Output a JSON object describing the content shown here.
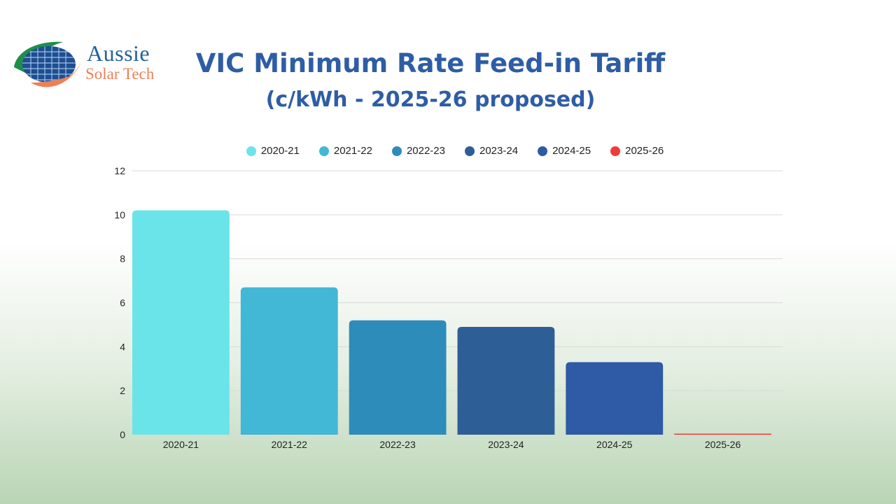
{
  "logo": {
    "line1": "Aussie",
    "line2": "Solar Tech",
    "colors": {
      "green": "#1e8f4a",
      "orange": "#ef7f55",
      "blue": "#23619c"
    }
  },
  "title": "VIC Minimum Rate Feed-in Tariff",
  "subtitle": "(c/kWh - 2025-26 proposed)",
  "chart_data": {
    "type": "bar",
    "title": "VIC Minimum Rate Feed-in Tariff",
    "subtitle": "(c/kWh - 2025-26 proposed)",
    "categories": [
      "2020-21",
      "2021-22",
      "2022-23",
      "2023-24",
      "2024-25",
      "2025-26"
    ],
    "values": [
      10.2,
      6.7,
      5.2,
      4.9,
      3.3,
      0.04
    ],
    "colors": [
      "#6ae4e8",
      "#42b7d6",
      "#2e8cba",
      "#2e5e96",
      "#2e5aa6",
      "#f23a3a"
    ],
    "legend": [
      "2020-21",
      "2021-22",
      "2022-23",
      "2023-24",
      "2024-25",
      "2025-26"
    ],
    "legend_position": "top-center",
    "ylim": [
      0,
      12
    ],
    "yticks": [
      0,
      2,
      4,
      6,
      8,
      10,
      12
    ],
    "grid": true,
    "xlabel": "",
    "ylabel": ""
  }
}
